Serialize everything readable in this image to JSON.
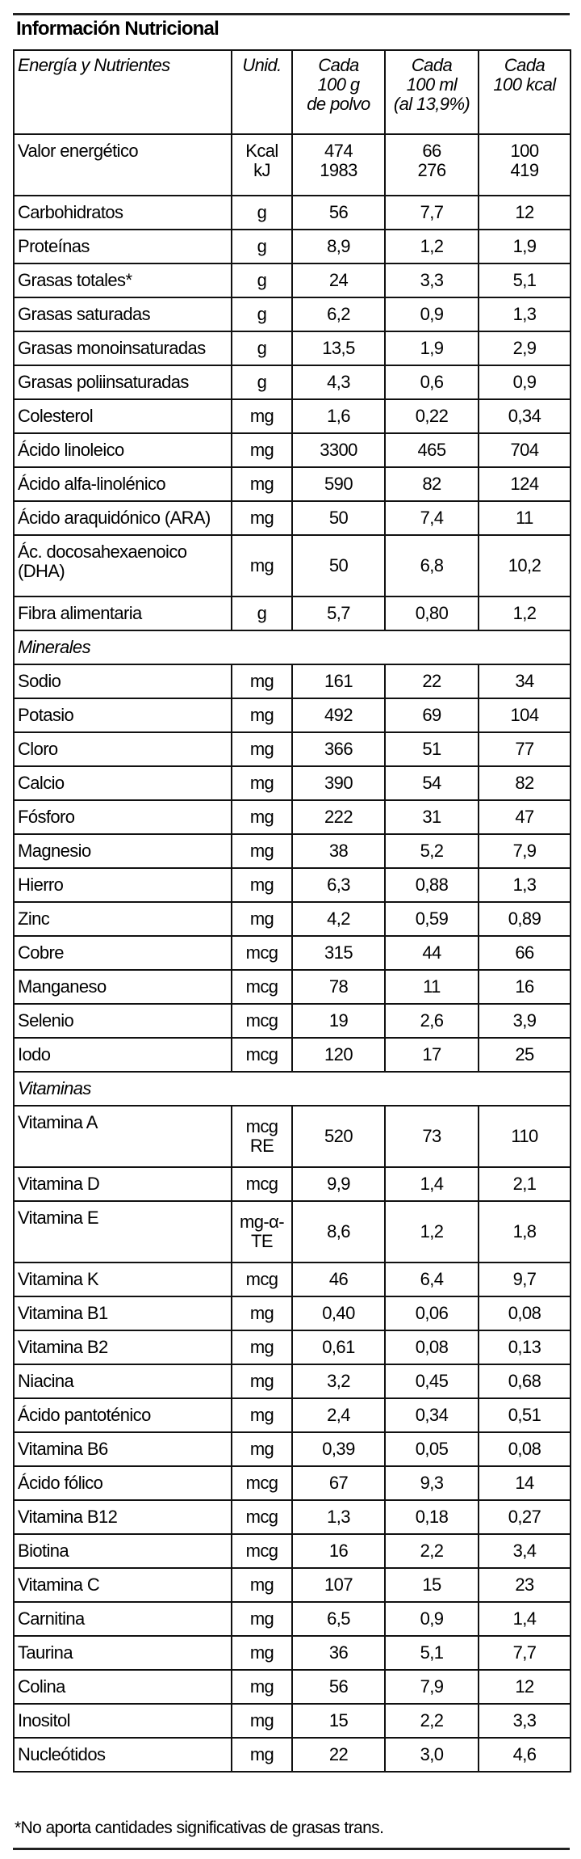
{
  "title": "Información Nutricional",
  "headers": [
    "Energía y Nutrientes",
    "Unid.",
    "Cada\n100 g\nde polvo",
    "Cada\n100 ml\n(al 13,9%)",
    "Cada\n100 kcal"
  ],
  "sections": [
    {
      "label": "",
      "rows": [
        [
          "Valor energético",
          "Kcal\nkJ",
          "474\n1983",
          "66\n276",
          "100\n419"
        ],
        [
          "Carbohidratos",
          "g",
          "56",
          "7,7",
          "12"
        ],
        [
          "Proteínas",
          "g",
          "8,9",
          "1,2",
          "1,9"
        ],
        [
          "Grasas totales*",
          "g",
          "24",
          "3,3",
          "5,1"
        ],
        [
          "Grasas saturadas",
          "g",
          "6,2",
          "0,9",
          "1,3"
        ],
        [
          "Grasas monoinsaturadas",
          "g",
          "13,5",
          "1,9",
          "2,9"
        ],
        [
          "Grasas poliinsaturadas",
          "g",
          "4,3",
          "0,6",
          "0,9"
        ],
        [
          "Colesterol",
          "mg",
          "1,6",
          "0,22",
          "0,34"
        ],
        [
          "Ácido linoleico",
          "mg",
          "3300",
          "465",
          "704"
        ],
        [
          "Ácido alfa-linolénico",
          "mg",
          "590",
          "82",
          "124"
        ],
        [
          "Ácido araquidónico (ARA)",
          "mg",
          "50",
          "7,4",
          "11"
        ],
        [
          "Ác. docosahexaenoico\n(DHA)",
          "mg",
          "50",
          "6,8",
          "10,2"
        ],
        [
          "Fibra alimentaria",
          "g",
          "5,7",
          "0,80",
          "1,2"
        ]
      ]
    },
    {
      "label": "Minerales",
      "rows": [
        [
          "Sodio",
          "mg",
          "161",
          "22",
          "34"
        ],
        [
          "Potasio",
          "mg",
          "492",
          "69",
          "104"
        ],
        [
          "Cloro",
          "mg",
          "366",
          "51",
          "77"
        ],
        [
          "Calcio",
          "mg",
          "390",
          "54",
          "82"
        ],
        [
          "Fósforo",
          "mg",
          "222",
          "31",
          "47"
        ],
        [
          "Magnesio",
          "mg",
          "38",
          "5,2",
          "7,9"
        ],
        [
          "Hierro",
          "mg",
          "6,3",
          "0,88",
          "1,3"
        ],
        [
          "Zinc",
          "mg",
          "4,2",
          "0,59",
          "0,89"
        ],
        [
          "Cobre",
          "mcg",
          "315",
          "44",
          "66"
        ],
        [
          "Manganeso",
          "mcg",
          "78",
          "11",
          "16"
        ],
        [
          "Selenio",
          "mcg",
          "19",
          "2,6",
          "3,9"
        ],
        [
          "Iodo",
          "mcg",
          "120",
          "17",
          "25"
        ]
      ]
    },
    {
      "label": "Vitaminas",
      "rows": [
        [
          "Vitamina A",
          "mcg\nRE",
          "520",
          "73",
          "110"
        ],
        [
          "Vitamina D",
          "mcg",
          "9,9",
          "1,4",
          "2,1"
        ],
        [
          "Vitamina E",
          "mg-α-\nTE",
          "8,6",
          "1,2",
          "1,8"
        ],
        [
          "Vitamina K",
          "mcg",
          "46",
          "6,4",
          "9,7"
        ],
        [
          "Vitamina B1",
          "mg",
          "0,40",
          "0,06",
          "0,08"
        ],
        [
          "Vitamina B2",
          "mg",
          "0,61",
          "0,08",
          "0,13"
        ],
        [
          "Niacina",
          "mg",
          "3,2",
          "0,45",
          "0,68"
        ],
        [
          "Ácido pantoténico",
          "mg",
          "2,4",
          "0,34",
          "0,51"
        ],
        [
          "Vitamina B6",
          "mg",
          "0,39",
          "0,05",
          "0,08"
        ],
        [
          "Ácido fólico",
          "mcg",
          "67",
          "9,3",
          "14"
        ],
        [
          "Vitamina B12",
          "mcg",
          "1,3",
          "0,18",
          "0,27"
        ],
        [
          "Biotina",
          "mcg",
          "16",
          "2,2",
          "3,4"
        ],
        [
          "Vitamina C",
          "mg",
          "107",
          "15",
          "23"
        ],
        [
          "Carnitina",
          "mg",
          "6,5",
          "0,9",
          "1,4"
        ],
        [
          "Taurina",
          "mg",
          "36",
          "5,1",
          "7,7"
        ],
        [
          "Colina",
          "mg",
          "56",
          "7,9",
          "12"
        ],
        [
          "Inositol",
          "mg",
          "15",
          "2,2",
          "3,3"
        ],
        [
          "Nucleótidos",
          "mg",
          "22",
          "3,0",
          "4,6"
        ]
      ]
    }
  ],
  "footnote": "*No aporta cantidades significativas de grasas trans."
}
